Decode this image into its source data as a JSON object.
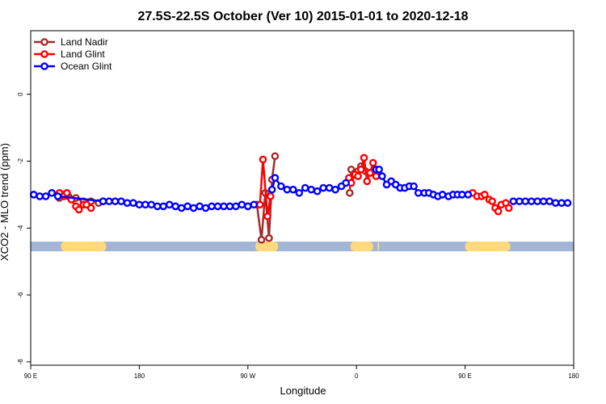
{
  "chart_data": {
    "type": "line",
    "title": "27.5S-22.5S October (Ver 10)   2015-01-01 to 2020-12-18",
    "xlabel": "Longitude",
    "ylabel": "XCO2 - MLO trend (ppm)",
    "xlim": [
      90,
      450
    ],
    "ylim": [
      -8.1,
      1.9
    ],
    "x_ticks": [
      {
        "value": 90,
        "label": "90 E"
      },
      {
        "value": 162,
        "label": "180"
      },
      {
        "value": 234,
        "label": "90 W"
      },
      {
        "value": 306,
        "label": "0"
      },
      {
        "value": 378,
        "label": "90 E"
      },
      {
        "value": 450,
        "label": "180"
      }
    ],
    "y_ticks": [
      {
        "value": 0,
        "label": "0"
      },
      {
        "value": -2,
        "label": "-2"
      },
      {
        "value": -4,
        "label": "-4"
      },
      {
        "value": -6,
        "label": "-6"
      },
      {
        "value": -8,
        "label": "-8"
      }
    ],
    "grid": false,
    "legend_position": "top-left",
    "series": [
      {
        "name": "Land Nadir",
        "color": "#a52a2a",
        "segments": [
          [
            [
              109,
              -3.1
            ],
            [
              111,
              -3.0
            ],
            [
              115,
              -3.05
            ],
            [
              120,
              -3.1
            ],
            [
              125,
              -3.2
            ],
            [
              130,
              -3.2
            ],
            [
              135,
              -3.25
            ]
          ],
          [
            [
              240,
              -3.3
            ],
            [
              243,
              -4.35
            ],
            [
              245.5,
              -2.95
            ],
            [
              248,
              -4.3
            ],
            [
              250,
              -2.55
            ],
            [
              252,
              -1.85
            ]
          ],
          [
            [
              301.5,
              -2.95
            ],
            [
              302.5,
              -2.25
            ],
            [
              305,
              -2.35
            ],
            [
              307,
              -2.3
            ],
            [
              309,
              -2.15
            ],
            [
              312,
              -2.3
            ]
          ]
        ]
      },
      {
        "name": "Land Glint",
        "color": "#ff0000",
        "segments": [
          [
            [
              109,
              -2.95
            ],
            [
              112,
              -3.05
            ],
            [
              114,
              -2.95
            ],
            [
              117,
              -3.15
            ],
            [
              120,
              -3.35
            ],
            [
              122,
              -3.45
            ],
            [
              125,
              -3.3
            ],
            [
              127,
              -3.3
            ],
            [
              130,
              -3.4
            ]
          ],
          [
            [
              242,
              -3.3
            ],
            [
              244,
              -1.95
            ],
            [
              247,
              -3.65
            ],
            [
              249,
              -3.05
            ]
          ],
          [
            [
              301,
              -2.5
            ],
            [
              302.5,
              -2.65
            ],
            [
              305,
              -2.4
            ],
            [
              307,
              -2.45
            ],
            [
              309,
              -2.25
            ],
            [
              311,
              -1.9
            ],
            [
              313,
              -2.6
            ],
            [
              315,
              -2.35
            ],
            [
              317,
              -2.05
            ],
            [
              319,
              -2.45
            ]
          ],
          [
            [
              383,
              -2.95
            ],
            [
              386,
              -3.05
            ],
            [
              389,
              -3.05
            ],
            [
              391,
              -3.0
            ],
            [
              394,
              -3.15
            ],
            [
              396,
              -3.2
            ],
            [
              398,
              -3.4
            ],
            [
              400,
              -3.5
            ],
            [
              402,
              -3.3
            ],
            [
              405,
              -3.25
            ],
            [
              407,
              -3.4
            ]
          ]
        ]
      },
      {
        "name": "Ocean Glint",
        "color": "#0000ff",
        "segments": [
          [
            [
              92,
              -3.0
            ],
            [
              96,
              -3.05
            ],
            [
              100,
              -3.05
            ],
            [
              104,
              -2.95
            ],
            [
              108,
              -3.05
            ],
            [
              138,
              -3.2
            ],
            [
              138,
              -3.2
            ],
            [
              142,
              -3.2
            ],
            [
              146,
              -3.2
            ],
            [
              150,
              -3.2
            ],
            [
              154,
              -3.25
            ],
            [
              158,
              -3.25
            ],
            [
              162,
              -3.3
            ],
            [
              166,
              -3.3
            ],
            [
              170,
              -3.3
            ],
            [
              174,
              -3.35
            ],
            [
              178,
              -3.35
            ],
            [
              182,
              -3.3
            ],
            [
              186,
              -3.35
            ],
            [
              190,
              -3.4
            ],
            [
              194,
              -3.35
            ],
            [
              198,
              -3.4
            ],
            [
              202,
              -3.35
            ],
            [
              206,
              -3.4
            ],
            [
              210,
              -3.35
            ],
            [
              214,
              -3.35
            ],
            [
              218,
              -3.35
            ],
            [
              222,
              -3.35
            ],
            [
              226,
              -3.35
            ],
            [
              230,
              -3.3
            ],
            [
              234,
              -3.35
            ],
            [
              238,
              -3.3
            ]
          ],
          [
            [
              250,
              -2.85
            ],
            [
              252,
              -2.5
            ],
            [
              256,
              -2.75
            ],
            [
              260,
              -2.85
            ],
            [
              264,
              -2.85
            ],
            [
              268,
              -2.95
            ],
            [
              272,
              -2.8
            ],
            [
              276,
              -2.85
            ],
            [
              280,
              -2.9
            ],
            [
              284,
              -2.8
            ],
            [
              288,
              -2.8
            ],
            [
              292,
              -2.85
            ],
            [
              296,
              -2.75
            ],
            [
              299,
              -2.65
            ]
          ],
          [
            [
              319,
              -2.25
            ],
            [
              321,
              -2.25
            ],
            [
              323,
              -2.45
            ],
            [
              326,
              -2.7
            ],
            [
              329,
              -2.6
            ],
            [
              332,
              -2.7
            ],
            [
              335,
              -2.8
            ],
            [
              338,
              -2.8
            ],
            [
              341,
              -2.75
            ],
            [
              344,
              -2.75
            ],
            [
              347,
              -2.95
            ],
            [
              351,
              -2.95
            ],
            [
              354,
              -2.95
            ],
            [
              357,
              -3.0
            ],
            [
              360,
              -3.05
            ],
            [
              363,
              -3.0
            ],
            [
              367,
              -3.05
            ],
            [
              370,
              -3.0
            ],
            [
              373,
              -3.0
            ],
            [
              376,
              -3.0
            ],
            [
              380,
              -3.0
            ]
          ],
          [
            [
              410,
              -3.2
            ],
            [
              414,
              -3.2
            ],
            [
              418,
              -3.2
            ],
            [
              422,
              -3.2
            ],
            [
              426,
              -3.2
            ],
            [
              430,
              -3.2
            ],
            [
              434,
              -3.2
            ],
            [
              438,
              -3.25
            ],
            [
              442,
              -3.25
            ],
            [
              446,
              -3.25
            ]
          ]
        ]
      }
    ],
    "land_mask": {
      "y": -4.55,
      "ocean_color": "#a2b5d6",
      "land_color": "#ffd97a",
      "land_ranges": [
        [
          110,
          140
        ],
        [
          239,
          254
        ],
        [
          302,
          317
        ],
        [
          320,
          321
        ],
        [
          378,
          408
        ]
      ]
    }
  }
}
